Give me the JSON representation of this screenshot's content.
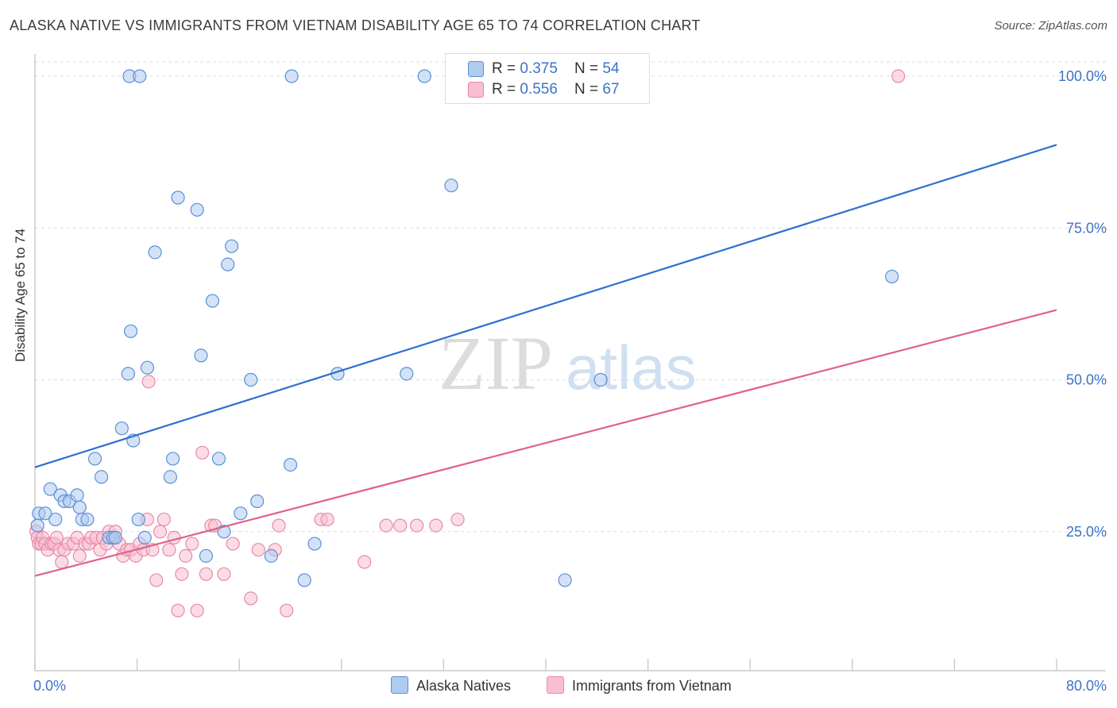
{
  "title": "ALASKA NATIVE VS IMMIGRANTS FROM VIETNAM DISABILITY AGE 65 TO 74 CORRELATION CHART",
  "source": "Source: ZipAtlas.com",
  "watermark": {
    "zip": "ZIP",
    "atlas": "atlas"
  },
  "colors": {
    "blue_fill": "#aecbf0",
    "blue_stroke": "#5b8fd6",
    "blue_line": "#2e6fce",
    "pink_fill": "#f8bfd0",
    "pink_stroke": "#e889a8",
    "pink_line": "#e0608c",
    "axis_text": "#3a73c7",
    "grid": "#dddddd"
  },
  "legend": {
    "rows": [
      {
        "r_label": "R = ",
        "r_value": "0.375",
        "n_label": "N = ",
        "n_value": "54"
      },
      {
        "r_label": "R = ",
        "r_value": "0.556",
        "n_label": "N = ",
        "n_value": "67"
      }
    ]
  },
  "chart_data": {
    "type": "scatter",
    "title": "ALASKA NATIVE VS IMMIGRANTS FROM VIETNAM DISABILITY AGE 65 TO 74 CORRELATION CHART",
    "xlabel": "",
    "ylabel": "Disability Age 65 to 74",
    "xlim": [
      0,
      80
    ],
    "ylim": [
      0,
      100
    ],
    "x_tick_labels": [
      "0.0%",
      "80.0%"
    ],
    "y_ticks": [
      25,
      50,
      75,
      100
    ],
    "y_tick_labels": [
      "25.0%",
      "50.0%",
      "75.0%",
      "100.0%"
    ],
    "grid": true,
    "legend_position": "top-center",
    "series": [
      {
        "name": "Alaska Natives",
        "color": "#aecbf0",
        "points": [
          [
            0.3,
            28
          ],
          [
            0.8,
            28
          ],
          [
            1.2,
            32
          ],
          [
            1.6,
            27
          ],
          [
            2,
            31
          ],
          [
            2.3,
            30
          ],
          [
            2.7,
            30
          ],
          [
            3.3,
            31
          ],
          [
            3.5,
            29
          ],
          [
            3.7,
            27
          ],
          [
            4.1,
            27
          ],
          [
            4.7,
            37
          ],
          [
            5.2,
            34
          ],
          [
            5.8,
            24
          ],
          [
            6.1,
            24
          ],
          [
            6.3,
            24
          ],
          [
            6.8,
            42
          ],
          [
            7.3,
            51
          ],
          [
            7.4,
            100
          ],
          [
            7.5,
            58
          ],
          [
            7.7,
            40
          ],
          [
            8.1,
            27
          ],
          [
            8.2,
            100
          ],
          [
            8.6,
            24
          ],
          [
            8.8,
            52
          ],
          [
            9.4,
            71
          ],
          [
            10.6,
            34
          ],
          [
            10.8,
            37
          ],
          [
            11.2,
            80
          ],
          [
            12.7,
            78
          ],
          [
            13,
            54
          ],
          [
            13.4,
            21
          ],
          [
            13.9,
            63
          ],
          [
            14.4,
            37
          ],
          [
            14.8,
            25
          ],
          [
            15.1,
            69
          ],
          [
            15.4,
            72
          ],
          [
            16.1,
            28
          ],
          [
            16.9,
            50
          ],
          [
            17.4,
            30
          ],
          [
            18.5,
            21
          ],
          [
            20,
            36
          ],
          [
            20.1,
            100
          ],
          [
            21.1,
            17
          ],
          [
            21.9,
            23
          ],
          [
            23.7,
            51
          ],
          [
            29.1,
            51
          ],
          [
            30.5,
            100
          ],
          [
            32.6,
            82
          ],
          [
            41.5,
            17
          ],
          [
            42.3,
            100
          ],
          [
            44.3,
            50
          ],
          [
            67.1,
            67
          ],
          [
            0.2,
            26
          ]
        ],
        "trend": [
          [
            0,
            35.6
          ],
          [
            80,
            88.7
          ]
        ]
      },
      {
        "name": "Immigrants from Vietnam",
        "color": "#f8bfd0",
        "points": [
          [
            0.1,
            25
          ],
          [
            0.2,
            24
          ],
          [
            0.3,
            23
          ],
          [
            0.5,
            23
          ],
          [
            0.6,
            24
          ],
          [
            0.8,
            23
          ],
          [
            1,
            22
          ],
          [
            1.3,
            23
          ],
          [
            1.5,
            23
          ],
          [
            1.7,
            24
          ],
          [
            1.9,
            22
          ],
          [
            2.1,
            20
          ],
          [
            2.3,
            22
          ],
          [
            2.6,
            23
          ],
          [
            3,
            23
          ],
          [
            3.3,
            24
          ],
          [
            3.5,
            21
          ],
          [
            3.9,
            23
          ],
          [
            4.2,
            23
          ],
          [
            4.4,
            24
          ],
          [
            4.8,
            24
          ],
          [
            5.1,
            22
          ],
          [
            5.3,
            24
          ],
          [
            5.6,
            23
          ],
          [
            5.8,
            25
          ],
          [
            6.1,
            24
          ],
          [
            6.3,
            25
          ],
          [
            6.6,
            23
          ],
          [
            6.9,
            21
          ],
          [
            7.2,
            22
          ],
          [
            7.5,
            22
          ],
          [
            7.9,
            21
          ],
          [
            8.2,
            23
          ],
          [
            8.5,
            22
          ],
          [
            8.8,
            27
          ],
          [
            9.2,
            22
          ],
          [
            9.5,
            17
          ],
          [
            9.8,
            25
          ],
          [
            10.1,
            27
          ],
          [
            10.5,
            22
          ],
          [
            10.9,
            24
          ],
          [
            11.2,
            12
          ],
          [
            11.5,
            18
          ],
          [
            11.8,
            21
          ],
          [
            12.3,
            23
          ],
          [
            12.7,
            12
          ],
          [
            13.1,
            38
          ],
          [
            13.4,
            18
          ],
          [
            13.8,
            26
          ],
          [
            14.1,
            26
          ],
          [
            14.8,
            18
          ],
          [
            15.5,
            23
          ],
          [
            16.9,
            14
          ],
          [
            17.5,
            22
          ],
          [
            18.8,
            22
          ],
          [
            19.1,
            26
          ],
          [
            19.7,
            12
          ],
          [
            22.4,
            27
          ],
          [
            22.9,
            27
          ],
          [
            25.8,
            20
          ],
          [
            27.5,
            26
          ],
          [
            28.6,
            26
          ],
          [
            29.9,
            26
          ],
          [
            31.4,
            26
          ],
          [
            33.1,
            27
          ],
          [
            67.6,
            100
          ],
          [
            8.9,
            49.7
          ]
        ],
        "trend": [
          [
            0,
            17.7
          ],
          [
            80,
            61.5
          ]
        ]
      }
    ]
  }
}
